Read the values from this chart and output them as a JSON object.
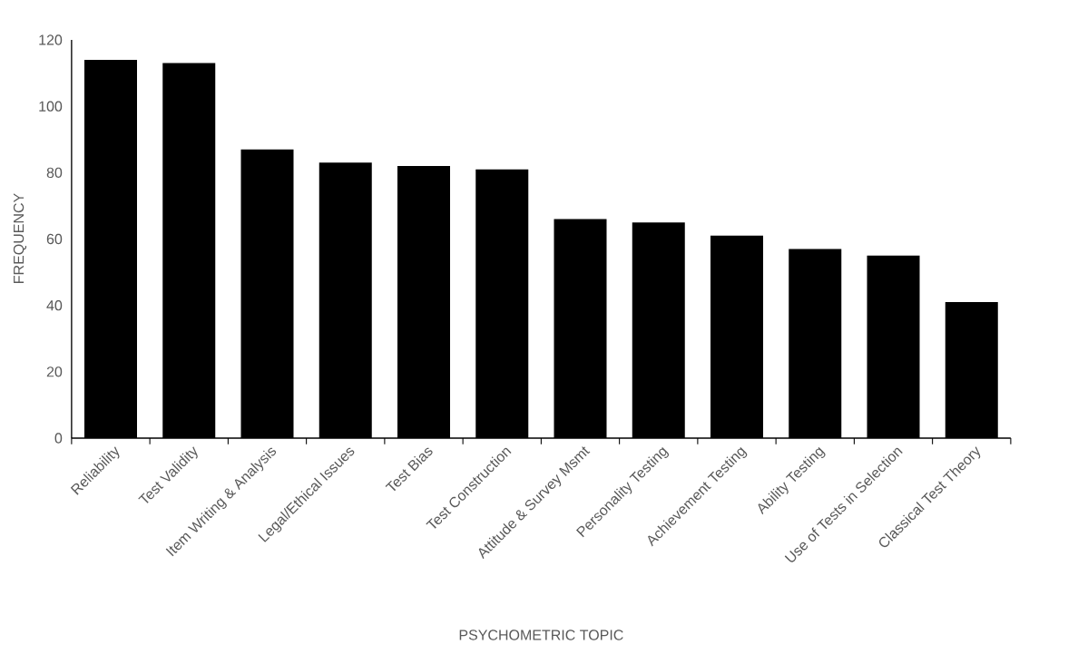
{
  "chart_data": {
    "type": "bar",
    "xlabel": "PSYCHOMETRIC TOPIC",
    "ylabel": "FREQUENCY",
    "categories": [
      "Reliability",
      "Test Validity",
      "Item Writing & Analysis",
      "Legal/Ethical Issues",
      "Test Bias",
      "Test Construction",
      "Attitude & Survey Msmt",
      "Personality Testing",
      "Achievement Testing",
      "Ability Testing",
      "Use of Tests in Selection",
      "Classical Test Theory"
    ],
    "values": [
      114,
      113,
      87,
      83,
      82,
      81,
      66,
      65,
      61,
      57,
      55,
      41
    ],
    "color": "#000000",
    "ylim": [
      0,
      120
    ],
    "yticks": [
      0,
      20,
      40,
      60,
      80,
      100,
      120
    ]
  }
}
